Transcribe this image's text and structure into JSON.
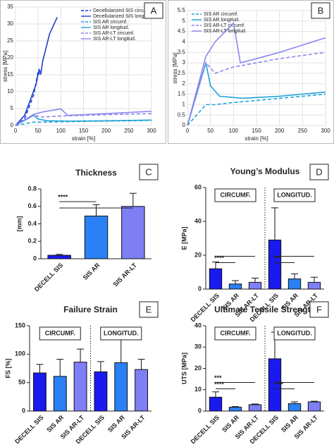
{
  "chart_data": [
    {
      "type": "line",
      "label": "A",
      "xlabel": "strain [%]",
      "ylabel": "stress [MPa]",
      "xlim": [
        0,
        300
      ],
      "xticks": [
        0,
        50,
        100,
        150,
        200,
        250,
        300
      ],
      "ylim": [
        0,
        35
      ],
      "yticks": [
        0,
        5,
        10,
        15,
        20,
        25,
        30,
        35
      ],
      "grid": true,
      "legend": "upper right",
      "series": [
        {
          "name": "Decellularized SIS circumf.",
          "color": "#1c3fd0",
          "style": "dashed",
          "x": [
            0,
            20,
            40,
            50,
            55
          ],
          "values": [
            0,
            2,
            9,
            16,
            15
          ]
        },
        {
          "name": "Decellularized SIS longitud.",
          "color": "#1c3fd0",
          "style": "solid",
          "x": [
            0,
            20,
            45,
            52,
            56,
            60,
            75,
            92
          ],
          "values": [
            0,
            3,
            12,
            16.5,
            15.5,
            19,
            27,
            32
          ]
        },
        {
          "name": "SIS AR circumf.",
          "color": "#1fa3d8",
          "style": "dashed",
          "x": [
            0,
            40,
            60,
            100,
            200,
            300
          ],
          "values": [
            0,
            1,
            1,
            1.1,
            1.3,
            1.5
          ]
        },
        {
          "name": "SIS AR longitud.",
          "color": "#1fa3d8",
          "style": "solid",
          "x": [
            0,
            40,
            50,
            70,
            120,
            200,
            300
          ],
          "values": [
            0,
            3,
            1.9,
            1.4,
            1.3,
            1.4,
            1.6
          ]
        },
        {
          "name": "SIS AR-LT circumf.",
          "color": "#8a86ee",
          "style": "dashed",
          "x": [
            0,
            40,
            60,
            100,
            200,
            300
          ],
          "values": [
            0,
            3,
            2.5,
            2.8,
            3.2,
            3.5
          ]
        },
        {
          "name": "SIS AR-LT longitud.",
          "color": "#8a86ee",
          "style": "solid",
          "x": [
            0,
            40,
            60,
            100,
            115,
            150,
            200,
            300
          ],
          "values": [
            0,
            3.3,
            4,
            4.9,
            3,
            3.2,
            3.5,
            4.2
          ]
        }
      ]
    },
    {
      "type": "line",
      "label": "B",
      "xlabel": "strain [%]",
      "ylabel": "stress [MPa]",
      "xlim": [
        0,
        300
      ],
      "xticks": [
        0,
        50,
        100,
        150,
        200,
        250,
        300
      ],
      "ylim": [
        0,
        5.5
      ],
      "yticks": [
        0,
        0.5,
        1,
        1.5,
        2,
        2.5,
        3,
        3.5,
        4,
        4.5,
        5,
        5.5
      ],
      "grid": true,
      "legend": "upper left",
      "series": [
        {
          "name": "SIS AR circumf.",
          "color": "#1fa3d8",
          "style": "dashed",
          "x": [
            0,
            40,
            60,
            100,
            200,
            300
          ],
          "values": [
            0,
            1,
            1,
            1.1,
            1.3,
            1.5
          ]
        },
        {
          "name": "SIS AR longitud.",
          "color": "#1fa3d8",
          "style": "solid",
          "x": [
            0,
            40,
            50,
            70,
            120,
            200,
            300
          ],
          "values": [
            0,
            3,
            1.9,
            1.4,
            1.3,
            1.4,
            1.6
          ]
        },
        {
          "name": "SIS AR-LT circumf.",
          "color": "#8a86ee",
          "style": "dashed",
          "x": [
            0,
            40,
            60,
            100,
            200,
            300
          ],
          "values": [
            0,
            3,
            2.5,
            2.8,
            3.2,
            3.5
          ]
        },
        {
          "name": "SIS AR-LT longitud.",
          "color": "#8a86ee",
          "style": "solid",
          "x": [
            0,
            40,
            60,
            100,
            115,
            150,
            200,
            300
          ],
          "values": [
            0,
            3.3,
            4,
            4.9,
            3,
            3.2,
            3.5,
            4.2
          ]
        }
      ]
    },
    {
      "type": "bar",
      "label": "C",
      "title": "Thickness",
      "ylabel": "[mm]",
      "categories": [
        "DECELL SIS",
        "SIS AR",
        "SIS AR-LT"
      ],
      "values": [
        0.04,
        0.49,
        0.6
      ],
      "errors": [
        0.01,
        0.13,
        0.15
      ],
      "colors": [
        "#1a1aee",
        "#2a80f5",
        "#7e7ef5"
      ],
      "ylim": [
        0,
        0.8
      ],
      "yticks": [
        0,
        0.2,
        0.4,
        0.6,
        0.8
      ],
      "significance": [
        "****"
      ]
    },
    {
      "type": "bar",
      "label": "D",
      "title": "Young’s Modulus",
      "ylabel": "E [MPa]",
      "categories": [
        "DECELL SIS",
        "SIS AR",
        "SIS AR-LT",
        "DECELL SIS",
        "SIS AR",
        "SIS AR-LT"
      ],
      "values": [
        12,
        3,
        4,
        29,
        6,
        4
      ],
      "errors": [
        4,
        2,
        2.5,
        19,
        3,
        3
      ],
      "colors": [
        "#1a1aee",
        "#2a80f5",
        "#7e7ef5",
        "#1a1aee",
        "#2a80f5",
        "#7e7ef5"
      ],
      "ylim": [
        0,
        60
      ],
      "yticks": [
        0,
        20,
        40,
        60
      ],
      "group_labels": [
        "CIRCUMF.",
        "LONGITUD."
      ],
      "significance": [
        "****",
        "***"
      ]
    },
    {
      "type": "bar",
      "label": "E",
      "title": "Failure Strain",
      "ylabel": "FS [%]",
      "categories": [
        "DECELL SIS",
        "SIS AR",
        "SIS AR-LT",
        "DECELL SIS",
        "SIS AR",
        "SIS AR-LT"
      ],
      "values": [
        67,
        61,
        86,
        69,
        85,
        73
      ],
      "errors": [
        15,
        30,
        23,
        18,
        41,
        18
      ],
      "colors": [
        "#1a1aee",
        "#2a80f5",
        "#7e7ef5",
        "#1a1aee",
        "#2a80f5",
        "#7e7ef5"
      ],
      "ylim": [
        0,
        150
      ],
      "yticks": [
        0,
        50,
        100,
        150
      ],
      "group_labels": [
        "CIRCUMF.",
        "LONGITUD."
      ]
    },
    {
      "type": "bar",
      "label": "F",
      "title": "Ultimate Tensile Strength",
      "ylabel": "UTS [MPa]",
      "categories": [
        "DECELL SIS",
        "SIS AR",
        "SIS AR-LT",
        "DECELL SIS",
        "SIS AR",
        "SIS AR-LT"
      ],
      "values": [
        6.5,
        1.8,
        3,
        24.5,
        3.5,
        4.3
      ],
      "errors": [
        2.5,
        0.3,
        0.3,
        12.5,
        0.8,
        0.3
      ],
      "colors": [
        "#1a1aee",
        "#2a80f5",
        "#7e7ef5",
        "#1a1aee",
        "#2a80f5",
        "#7e7ef5"
      ],
      "ylim": [
        0,
        40
      ],
      "yticks": [
        0,
        10,
        20,
        30,
        40
      ],
      "group_labels": [
        "CIRCUMF.",
        "LONGITUD."
      ],
      "significance": [
        "***",
        "****",
        "****"
      ]
    }
  ]
}
